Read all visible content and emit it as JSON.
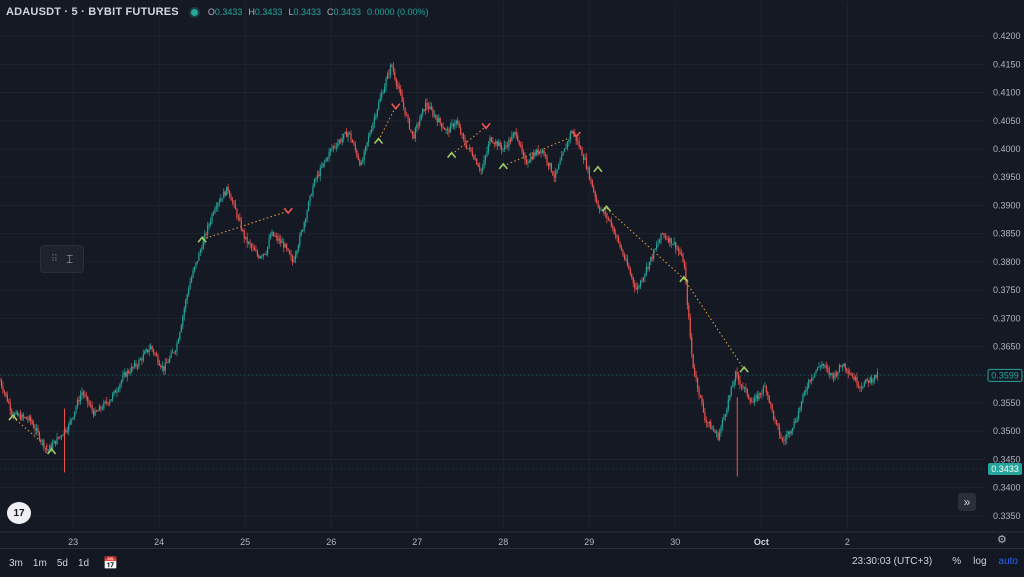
{
  "header": {
    "symbol": "ADAUSDT · 5 · BYBIT FUTURES",
    "ohlc": [
      {
        "key": "O",
        "value": "0.3433"
      },
      {
        "key": "H",
        "value": "0.3433"
      },
      {
        "key": "L",
        "value": "0.3433"
      },
      {
        "key": "C",
        "value": "0.3433"
      },
      {
        "key": "",
        "value": "0.0000 (0.00%)"
      }
    ]
  },
  "bottom": {
    "ranges": [
      "3m",
      "1m",
      "5d",
      "1d"
    ],
    "calendar_icon": "calendar-icon",
    "time": "23:30:03 (UTC+3)",
    "percent": "%",
    "log": "log",
    "auto": "auto"
  },
  "tool_icon": "text-cursor-icon",
  "logo": "TV",
  "scroll_icon": "double-chevron-right-icon",
  "settings_icon": "gear-icon",
  "colors": {
    "up": "#26a69a",
    "down": "#ef5350",
    "background": "#151924",
    "signal_long": "#9ccc65",
    "signal_short": "#ef5350",
    "signal_line": "#e8a33c"
  },
  "chart_data": {
    "type": "line",
    "symbol": "ADAUSDT",
    "interval": "5",
    "ylim": [
      0.3325,
      0.4225
    ],
    "y_ticks": [
      "0.4200",
      "0.4150",
      "0.4100",
      "0.4050",
      "0.4000",
      "0.3950",
      "0.3900",
      "0.3850",
      "0.3800",
      "0.3750",
      "0.3700",
      "0.3650",
      "0.3600",
      "0.3550",
      "0.3500",
      "0.3450",
      "0.3400",
      "0.3350"
    ],
    "x_ticks": [
      "23",
      "24",
      "25",
      "26",
      "27",
      "28",
      "29",
      "30",
      "Oct",
      "2"
    ],
    "x_tick_days": [
      23,
      24,
      25,
      26,
      27,
      28,
      29,
      30,
      31,
      32
    ],
    "xlim_days": [
      22.15,
      33.6
    ],
    "last_price_label": "0.3433",
    "last_price": 0.3433,
    "current_price_label": "0.3599",
    "current_price": 0.3599,
    "series": [
      {
        "x": [
          22.15,
          22.3,
          22.5,
          22.7,
          22.95,
          23.1,
          23.25,
          23.45,
          23.6,
          23.75,
          23.9,
          24.05,
          24.2,
          24.35,
          24.5,
          24.65,
          24.8,
          25.0,
          25.15,
          25.25,
          25.3,
          25.45,
          25.55,
          25.65,
          25.8,
          26.0,
          26.2,
          26.35,
          26.45,
          26.55,
          26.7,
          26.85,
          26.95,
          27.1,
          27.25,
          27.35,
          27.45,
          27.55,
          27.65,
          27.75,
          27.85,
          28.0,
          28.15,
          28.25,
          28.35,
          28.45,
          28.6,
          28.8,
          28.95,
          29.1,
          29.25,
          29.4,
          29.55,
          29.7,
          29.85,
          30.0,
          30.1,
          30.2,
          30.35,
          30.5,
          30.7,
          30.9,
          31.05,
          31.15,
          31.25,
          31.4,
          31.55,
          31.7,
          31.8,
          31.85,
          31.9,
          31.95,
          32.05,
          32.15,
          32.25,
          32.35
        ],
        "y": [
          0.359,
          0.353,
          0.352,
          0.3465,
          0.351,
          0.357,
          0.353,
          0.356,
          0.36,
          0.362,
          0.365,
          0.361,
          0.365,
          0.376,
          0.383,
          0.39,
          0.393,
          0.384,
          0.381,
          0.382,
          0.385,
          0.383,
          0.38,
          0.385,
          0.394,
          0.4,
          0.403,
          0.397,
          0.403,
          0.408,
          0.415,
          0.407,
          0.402,
          0.408,
          0.405,
          0.403,
          0.405,
          0.401,
          0.399,
          0.396,
          0.402,
          0.4,
          0.403,
          0.3975,
          0.399,
          0.4,
          0.395,
          0.4035,
          0.398,
          0.39,
          0.387,
          0.381,
          0.375,
          0.38,
          0.385,
          0.383,
          0.38,
          0.362,
          0.352,
          0.349,
          0.36,
          0.355,
          0.358,
          0.352,
          0.348,
          0.352,
          0.359,
          0.362,
          0.36,
          0.3599,
          0.361,
          0.362,
          0.36,
          0.358,
          0.359,
          0.3599
        ]
      }
    ],
    "signals": [
      {
        "type": "long",
        "x": 22.3,
        "y": 0.3525
      },
      {
        "type": "long",
        "x": 22.75,
        "y": 0.3465
      },
      {
        "type": "long",
        "x": 24.5,
        "y": 0.384
      },
      {
        "type": "short",
        "x": 25.5,
        "y": 0.389
      },
      {
        "type": "long",
        "x": 26.55,
        "y": 0.4015
      },
      {
        "type": "short",
        "x": 26.75,
        "y": 0.4075
      },
      {
        "type": "long",
        "x": 27.4,
        "y": 0.399
      },
      {
        "type": "short",
        "x": 27.8,
        "y": 0.404
      },
      {
        "type": "long",
        "x": 28.0,
        "y": 0.397
      },
      {
        "type": "short",
        "x": 28.85,
        "y": 0.4025
      },
      {
        "type": "long",
        "x": 29.1,
        "y": 0.3965
      },
      {
        "type": "long",
        "x": 29.2,
        "y": 0.3895
      },
      {
        "type": "long",
        "x": 30.1,
        "y": 0.377
      },
      {
        "type": "long",
        "x": 30.8,
        "y": 0.361
      }
    ],
    "signal_lines": [
      [
        [
          22.3,
          0.3525
        ],
        [
          22.75,
          0.3465
        ]
      ],
      [
        [
          24.5,
          0.384
        ],
        [
          25.5,
          0.389
        ]
      ],
      [
        [
          26.55,
          0.4015
        ],
        [
          26.75,
          0.4075
        ]
      ],
      [
        [
          27.4,
          0.399
        ],
        [
          27.8,
          0.404
        ]
      ],
      [
        [
          28.0,
          0.397
        ],
        [
          28.85,
          0.4025
        ]
      ],
      [
        [
          29.2,
          0.3895
        ],
        [
          30.1,
          0.377
        ]
      ],
      [
        [
          30.1,
          0.377
        ],
        [
          30.8,
          0.361
        ]
      ]
    ],
    "grid": true,
    "legend": "none"
  }
}
